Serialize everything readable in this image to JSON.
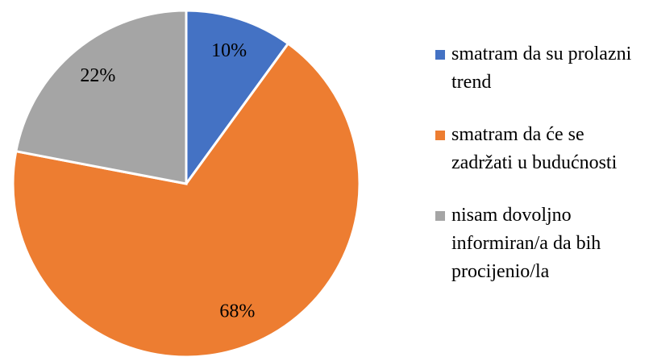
{
  "chart_data": {
    "type": "pie",
    "categories": [
      "smatram da su prolazni trend",
      "smatram da će se zadržati u budućnosti",
      "nisam dovoljno informiran/a da bih procijenio/la"
    ],
    "values": [
      10,
      68,
      22
    ],
    "value_labels": [
      "10%",
      "68%",
      "22%"
    ],
    "colors": [
      "#4472c4",
      "#ed7d31",
      "#a5a5a5"
    ],
    "legend": "right"
  }
}
